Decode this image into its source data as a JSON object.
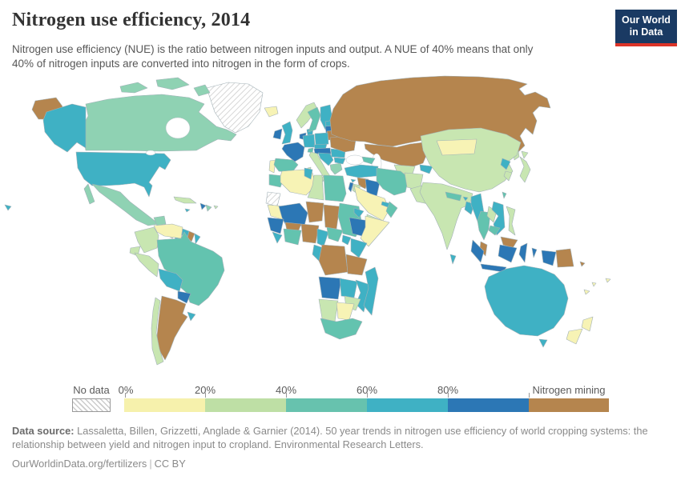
{
  "header": {
    "title": "Nitrogen use efficiency, 2014",
    "subtitle_line1": "Nitrogen use efficiency (NUE) is the ratio between nitrogen inputs and output. A NUE of 40% means that only",
    "subtitle_line2": "40% of nitrogen inputs are converted into nitrogen in the form of crops."
  },
  "logo": {
    "line1": "Our World",
    "line2": "in Data",
    "bg": "#1a3a63",
    "accent": "#dc3428"
  },
  "legend": {
    "no_data_label": "No data",
    "ticks": [
      "0%",
      "20%",
      "40%",
      "60%",
      "80%"
    ],
    "mining_label": "Nitrogen mining",
    "segments": [
      "#f6f1ac",
      "#bedfa5",
      "#67c2ae",
      "#3fb1c4",
      "#2c77b5",
      "#b5854e"
    ]
  },
  "footer": {
    "source_label": "Data source:",
    "source_text": " Lassaletta, Billen, Grizzetti, Anglade & Garnier (2014). 50 year trends in nitrogen use efficiency of world cropping systems: the relationship between yield and nitrogen input to cropland. Environmental Research Letters.",
    "link": "OurWorldinData.org/fertilizers",
    "separator": "|",
    "license": "CC BY"
  },
  "map": {
    "ocean": "#ffffff",
    "palette": {
      "y": "#f7f3b5",
      "lg": "#c8e6b1",
      "sg": "#8fd2b3",
      "tg": "#63c3af",
      "t": "#3fb1c4",
      "b": "#2c77b5",
      "br": "#b5854e"
    },
    "regions": {
      "greenland": "nd",
      "iceland": "y",
      "canada_arctic1": "sg",
      "canada_arctic2": "sg",
      "canada_arctic3": "sg",
      "canada": "sg",
      "alaska": "t",
      "chukotka": "br",
      "usa": "t",
      "hawaii": "t",
      "baja": "sg",
      "mexico": "sg",
      "yucatan": "sg",
      "guatemala": "lg",
      "nicaragua": "y",
      "costarica_panama": "t",
      "cuba": "lg",
      "haiti": "b",
      "dominican": "sg",
      "jamaica": "t",
      "puertorico": "lg",
      "venezuela": "y",
      "colombia": "lg",
      "guyana": "t",
      "suriname": "br",
      "frguiana": "t",
      "ecuador": "lg",
      "peru": "lg",
      "brazil": "tg",
      "bolivia": "t",
      "paraguay": "b",
      "uruguay": "t",
      "argentina": "br",
      "chile": "lg",
      "ireland": "b",
      "uk": "t",
      "portugal": "y",
      "spain": "tg",
      "france": "b",
      "benelux": "b",
      "germany": "t",
      "denmark": "t",
      "norway": "lg",
      "sweden": "tg",
      "finland": "t",
      "baltic_est": "t",
      "latvia": "b",
      "belarus": "br",
      "poland": "t",
      "czech": "t",
      "austria_hungary": "b",
      "switzerland": "tg",
      "italy": "lg",
      "sicily": "lg",
      "sardinia": "lg",
      "balkans": "t",
      "greece": "sg",
      "romania": "t",
      "bulgaria": "t",
      "ukraine": "br",
      "russia": "br",
      "sakhalin": "lg",
      "kazakhstan": "br",
      "uzbekistan": "lg",
      "turkmenistan": "tg",
      "kyrgyzstan": "t",
      "caucasus": "tg",
      "turkey": "t",
      "cyprus": "t",
      "syria": "br",
      "israel": "b",
      "jordan": "lg",
      "iraq": "b",
      "iran": "tg",
      "afghanistan": "lg",
      "pakistan": "lg",
      "saudi": "y",
      "yemen": "lg",
      "oman": "tg",
      "uae": "t",
      "egypt": "tg",
      "morocco": "tg",
      "algeria": "y",
      "tunisia": "t",
      "libya": "lg",
      "wsahara": "nd",
      "mauritania": "y",
      "mali": "b",
      "burkina": "br",
      "niger": "br",
      "chad": "br",
      "sudan": "tg",
      "eritrea": "t",
      "ethiopia": "b",
      "somalia": "y",
      "senegal": "b",
      "sierraleone": "t",
      "ghana_ivory": "tg",
      "nigeria": "br",
      "cameroon": "t",
      "car": "tg",
      "gabon": "t",
      "drc": "br",
      "uganda": "t",
      "kenya": "t",
      "tanzania": "br",
      "angola": "b",
      "zambia": "t",
      "mozambique": "t",
      "zimbabwe": "lg",
      "namibia": "lg",
      "botswana": "y",
      "southafrica": "tg",
      "madagascar": "t",
      "india": "lg",
      "nepal": "tg",
      "bhutan": "t",
      "bangladesh": "t",
      "srilanka": "t",
      "china": "lg",
      "mongolia": "y",
      "nkorea": "t",
      "skorea": "lg",
      "japan": "lg",
      "hokkaido": "lg",
      "taiwan": "tg",
      "myanmar": "t",
      "thailand": "tg",
      "laos": "lg",
      "vietnam": "t",
      "cambodia": "tg",
      "malaysia": "br",
      "borneo_my": "br",
      "sumatra": "b",
      "java": "b",
      "borneo_id": "b",
      "sulawesi": "b",
      "moluccas": "b",
      "wpapua": "b",
      "png": "br",
      "solomons": "br",
      "philippines": "lg",
      "australia": "t",
      "tasmania": "t",
      "nz_north": "y",
      "nz_south": "y",
      "fiji": "y",
      "newcaledonia": "y",
      "vanuatu": "y"
    }
  }
}
